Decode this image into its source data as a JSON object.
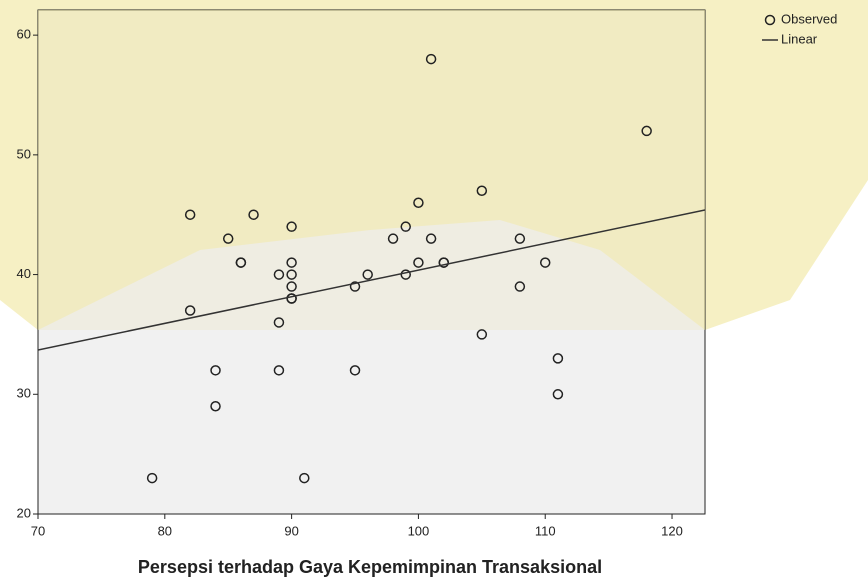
{
  "chart_data": {
    "type": "scatter",
    "x_label": "Persepsi terhadap Gaya Kepemimpinan Transaksional",
    "xlim": [
      70,
      122.6
    ],
    "ylim": [
      20,
      62.1
    ],
    "xticks": [
      70,
      80,
      90,
      100,
      110,
      120
    ],
    "yticks": [
      20,
      30,
      40,
      50,
      60
    ],
    "series": [
      {
        "name": "Observed",
        "type": "scatter",
        "color": "#222222",
        "x": [
          79,
          82,
          82,
          84,
          84,
          85,
          86,
          86,
          87,
          89,
          89,
          89,
          90,
          90,
          90,
          90,
          90,
          90,
          91,
          95,
          95,
          96,
          98,
          99,
          99,
          100,
          100,
          101,
          101,
          102,
          102,
          105,
          105,
          108,
          108,
          110,
          111,
          111,
          118
        ],
        "values": [
          23,
          37,
          45,
          32,
          29,
          43,
          41,
          41,
          45,
          40,
          36,
          32,
          44,
          41,
          40,
          39,
          38,
          38,
          23,
          32,
          39,
          40,
          43,
          44,
          40,
          46,
          41,
          43,
          58,
          41,
          41,
          47,
          35,
          43,
          39,
          41,
          33,
          30,
          52
        ]
      },
      {
        "name": "Linear",
        "type": "line",
        "color": "#333333",
        "x": [
          70,
          122.6
        ],
        "values": [
          33.7,
          45.4
        ]
      }
    ]
  }
}
